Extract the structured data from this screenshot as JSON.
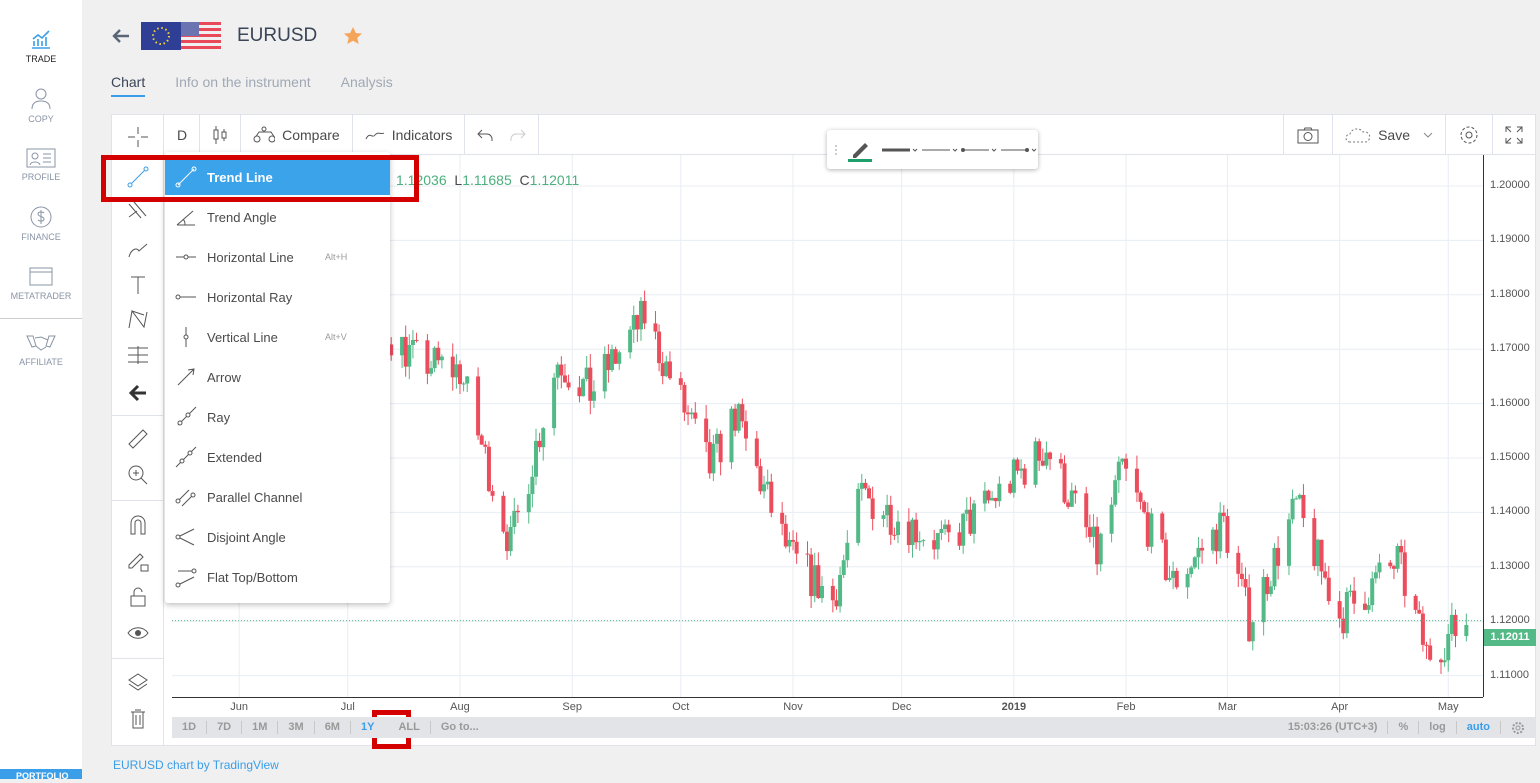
{
  "sidebar": {
    "items": [
      {
        "label": "TRADE",
        "icon": "trade-chart-icon"
      },
      {
        "label": "COPY",
        "icon": "person-icon"
      },
      {
        "label": "PROFILE",
        "icon": "id-card-icon"
      },
      {
        "label": "FINANCE",
        "icon": "dollar-icon"
      },
      {
        "label": "METATRADER",
        "icon": "window-icon"
      },
      {
        "label": "AFFILIATE",
        "icon": "handshake-icon"
      }
    ],
    "bottom_label": "PORTFOLIO"
  },
  "header": {
    "symbol": "EURUSD",
    "favorite": true,
    "star_color": "#f5a55a"
  },
  "tabs": [
    "Chart",
    "Info on the instrument",
    "Analysis"
  ],
  "toolbar": {
    "interval": "D",
    "compare": "Compare",
    "indicators": "Indicators",
    "save": "Save"
  },
  "ohlc": {
    "o_partial": "1.12036",
    "l_label": "L",
    "l": "1.11685",
    "c_label": "C",
    "c": "1.12011"
  },
  "drawing_menu": [
    {
      "label": "Trend Line",
      "selected": true
    },
    {
      "label": "Trend Angle"
    },
    {
      "label": "Horizontal Line",
      "shortcut": "Alt+H"
    },
    {
      "label": "Horizontal Ray"
    },
    {
      "label": "Vertical Line",
      "shortcut": "Alt+V"
    },
    {
      "label": "Arrow"
    },
    {
      "label": "Ray"
    },
    {
      "label": "Extended"
    },
    {
      "label": "Parallel Channel"
    },
    {
      "label": "Disjoint Angle"
    },
    {
      "label": "Flat Top/Bottom"
    }
  ],
  "price_axis": {
    "ticks": [
      "1.20000",
      "1.19000",
      "1.18000",
      "1.17000",
      "1.16000",
      "1.15000",
      "1.14000",
      "1.13000",
      "1.12000",
      "1.11000"
    ],
    "current": "1.12011"
  },
  "time_axis": [
    "Jun",
    "Jul",
    "Aug",
    "Sep",
    "Oct",
    "Nov",
    "Dec",
    "2019",
    "Feb",
    "Mar",
    "Apr",
    "May"
  ],
  "ranges": [
    "1D",
    "7D",
    "1M",
    "3M",
    "6M",
    "1Y",
    "ALL",
    "Go to..."
  ],
  "active_range": "1Y",
  "status": {
    "time": "15:03:26 (UTC+3)",
    "percent": "%",
    "log": "log",
    "auto": "auto"
  },
  "credit": "EURUSD chart by TradingView",
  "colors": {
    "up": "#53b987",
    "down": "#eb4d5c",
    "accent": "#3aa3ea"
  },
  "chart_data": {
    "type": "candlestick",
    "series_note_path": [
      [
        "2018-05-14",
        1.185
      ],
      [
        "2018-06-01",
        1.165
      ],
      [
        "2018-06-20",
        1.158
      ],
      [
        "2018-07-09",
        1.175
      ],
      [
        "2018-07-20",
        1.168
      ],
      [
        "2018-08-01",
        1.166
      ],
      [
        "2018-08-15",
        1.134
      ],
      [
        "2018-08-28",
        1.168
      ],
      [
        "2018-09-06",
        1.162
      ],
      [
        "2018-09-21",
        1.176
      ],
      [
        "2018-10-09",
        1.148
      ],
      [
        "2018-10-16",
        1.158
      ],
      [
        "2018-10-31",
        1.132
      ],
      [
        "2018-11-12",
        1.124
      ],
      [
        "2018-11-20",
        1.143
      ],
      [
        "2018-12-13",
        1.134
      ],
      [
        "2019-01-10",
        1.152
      ],
      [
        "2019-01-24",
        1.132
      ],
      [
        "2019-01-31",
        1.148
      ],
      [
        "2019-02-14",
        1.127
      ],
      [
        "2019-02-28",
        1.138
      ],
      [
        "2019-03-07",
        1.12
      ],
      [
        "2019-03-20",
        1.141
      ],
      [
        "2019-04-01",
        1.121
      ],
      [
        "2019-04-17",
        1.131
      ],
      [
        "2019-04-25",
        1.114
      ],
      [
        "2019-05-06",
        1.12
      ]
    ],
    "ylim": [
      1.107,
      1.203
    ]
  }
}
